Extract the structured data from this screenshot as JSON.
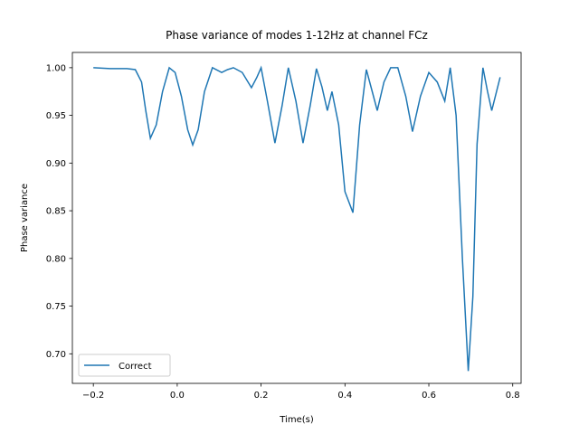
{
  "chart_data": {
    "type": "line",
    "title": "Phase variance of modes 1-12Hz at channel FCz",
    "xlabel": "Time(s)",
    "ylabel": "Phase variance",
    "x": [
      -0.2,
      -0.16,
      -0.12,
      -0.1,
      -0.085,
      -0.075,
      -0.064,
      -0.05,
      -0.035,
      -0.019,
      -0.005,
      0.01,
      0.025,
      0.037,
      0.05,
      0.065,
      0.084,
      0.106,
      0.12,
      0.134,
      0.155,
      0.177,
      0.19,
      0.2,
      0.215,
      0.233,
      0.25,
      0.265,
      0.283,
      0.3,
      0.317,
      0.332,
      0.345,
      0.358,
      0.369,
      0.385,
      0.4,
      0.419,
      0.435,
      0.451,
      0.465,
      0.477,
      0.493,
      0.509,
      0.526,
      0.545,
      0.561,
      0.58,
      0.6,
      0.62,
      0.638,
      0.651,
      0.665,
      0.68,
      0.694,
      0.705,
      0.715,
      0.729,
      0.74,
      0.75,
      0.77
    ],
    "series": [
      {
        "name": "Correct",
        "color": "#1f77b4",
        "values": [
          1.0,
          0.999,
          0.999,
          0.998,
          0.985,
          0.955,
          0.926,
          0.94,
          0.975,
          1.0,
          0.995,
          0.97,
          0.935,
          0.919,
          0.935,
          0.975,
          1.0,
          0.995,
          0.998,
          1.0,
          0.995,
          0.979,
          0.99,
          1.0,
          0.965,
          0.921,
          0.96,
          1.0,
          0.965,
          0.921,
          0.96,
          0.999,
          0.98,
          0.955,
          0.975,
          0.94,
          0.87,
          0.848,
          0.94,
          0.998,
          0.975,
          0.955,
          0.985,
          1.0,
          1.0,
          0.97,
          0.933,
          0.97,
          0.995,
          0.985,
          0.965,
          1.0,
          0.95,
          0.8,
          0.682,
          0.76,
          0.92,
          1.0,
          0.975,
          0.955,
          0.99
        ]
      }
    ],
    "xlim": [
      -0.25,
      0.82
    ],
    "ylim": [
      0.669,
      1.016
    ],
    "xticks": [
      {
        "value": -0.2,
        "label": "−0.2"
      },
      {
        "value": 0.0,
        "label": "0.0"
      },
      0.2,
      0.4,
      0.6,
      0.8
    ],
    "yticks": [
      {
        "value": 0.7,
        "label": "0.70"
      },
      0.75,
      {
        "value": 0.8,
        "label": "0.80"
      },
      0.85,
      {
        "value": 0.9,
        "label": "0.90"
      },
      0.95,
      {
        "value": 1.0,
        "label": "1.00"
      }
    ],
    "legend": "lower left"
  }
}
